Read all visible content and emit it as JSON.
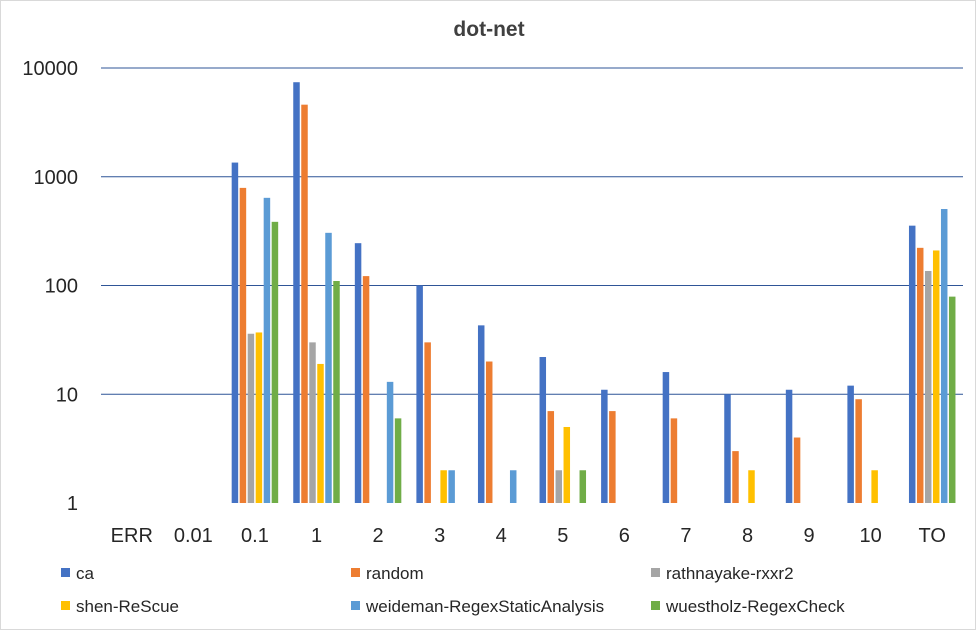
{
  "chart_data": {
    "type": "bar",
    "title": "dot-net",
    "xlabel": "",
    "ylabel": "",
    "y_scale": "log",
    "ylim": [
      1,
      10000
    ],
    "y_ticks": [
      "1",
      "10",
      "100",
      "1000",
      "10000"
    ],
    "grid": true,
    "legend_position": "bottom",
    "categories": [
      "ERR",
      "0.01",
      "0.1",
      "1",
      "2",
      "3",
      "4",
      "5",
      "6",
      "7",
      "8",
      "9",
      "10",
      "TO"
    ],
    "series": [
      {
        "name": "ca",
        "color": "#4472c4",
        "values": [
          null,
          null,
          1350,
          7400,
          245,
          100,
          43,
          22,
          11,
          16,
          10,
          11,
          12,
          355
        ]
      },
      {
        "name": "random",
        "color": "#ed7d31",
        "values": [
          null,
          null,
          790,
          4600,
          122,
          30,
          20,
          7,
          7,
          6,
          3,
          4,
          9,
          222
        ]
      },
      {
        "name": "rathnayake-rxxr2",
        "color": "#a5a5a5",
        "values": [
          null,
          null,
          36,
          30,
          null,
          null,
          null,
          2,
          null,
          null,
          null,
          null,
          null,
          136
        ]
      },
      {
        "name": "shen-ReScue",
        "color": "#ffc000",
        "values": [
          null,
          null,
          37,
          19,
          null,
          2,
          null,
          5,
          null,
          null,
          2,
          null,
          2,
          210
        ]
      },
      {
        "name": "weideman-RegexStaticAnalysis",
        "color": "#5b9bd5",
        "values": [
          null,
          null,
          640,
          305,
          13,
          2,
          2,
          null,
          null,
          null,
          null,
          null,
          null,
          505
        ]
      },
      {
        "name": "wuestholz-RegexCheck",
        "color": "#70ad47",
        "values": [
          null,
          null,
          385,
          110,
          6,
          null,
          null,
          2,
          null,
          null,
          null,
          null,
          null,
          79
        ]
      }
    ]
  }
}
